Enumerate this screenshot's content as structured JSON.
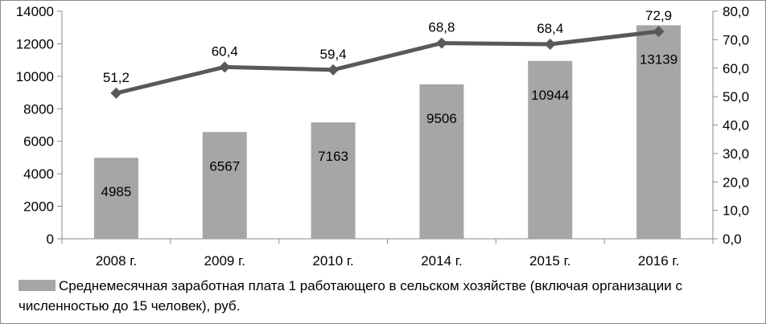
{
  "chart_data": {
    "type": "bar",
    "categories": [
      "2008 г.",
      "2009 г.",
      "2010 г.",
      "2014 г.",
      "2015 г.",
      "2016 г."
    ],
    "series": [
      {
        "name": "Среднемесячная заработная плата 1 работающего в сельском хозяйстве (включая организации с численностью до 15 человек), руб.",
        "type": "bar",
        "axis": "left",
        "values": [
          4985,
          6567,
          7163,
          9506,
          10944,
          13139
        ],
        "labels": [
          "4985",
          "6567",
          "7163",
          "9506",
          "10944",
          "13139"
        ],
        "color": "#a6a6a6"
      },
      {
        "type": "line",
        "axis": "right",
        "values": [
          51.2,
          60.4,
          59.4,
          68.8,
          68.4,
          72.9
        ],
        "labels": [
          "51,2",
          "60,4",
          "59,4",
          "68,8",
          "68,4",
          "72,9"
        ],
        "color": "#595959",
        "marker": "diamond"
      }
    ],
    "y_left": {
      "lim": [
        0,
        14000
      ],
      "ticks": [
        "0",
        "2000",
        "4000",
        "6000",
        "8000",
        "10000",
        "12000",
        "14000"
      ]
    },
    "y_right": {
      "lim": [
        0,
        80
      ],
      "ticks": [
        "0,0",
        "10,0",
        "20,0",
        "30,0",
        "40,0",
        "50,0",
        "60,0",
        "70,0",
        "80,0"
      ]
    },
    "grid": false,
    "legend_position": "bottom"
  }
}
